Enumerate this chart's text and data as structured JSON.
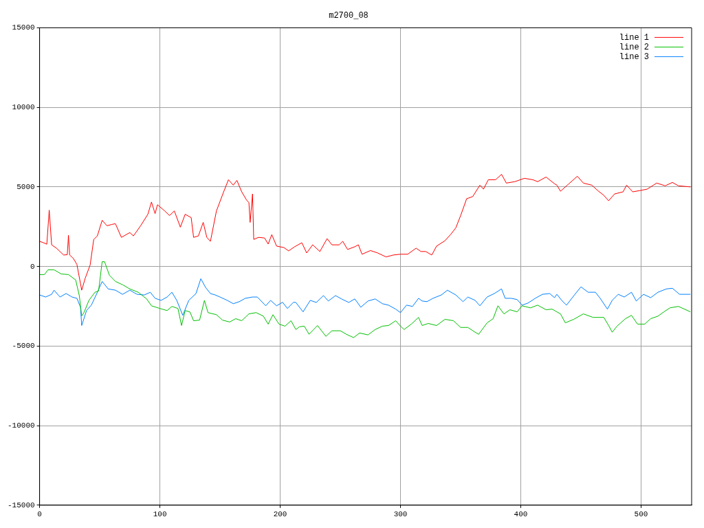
{
  "chart_data": {
    "type": "line",
    "title": "m2700_08",
    "xlim": [
      0,
      542
    ],
    "xticks": [
      0,
      100,
      200,
      300,
      400,
      500
    ],
    "ylim": [
      -15000,
      15000
    ],
    "yticks": [
      -15000,
      -10000,
      -5000,
      0,
      5000,
      10000,
      15000
    ],
    "grid": true,
    "legend": "top right",
    "marker": "none",
    "line_style": "solid",
    "series": [
      {
        "name": "line 1",
        "color": "#ff0000",
        "x": [
          0,
          3,
          6,
          8,
          10,
          14,
          20,
          23,
          24,
          25,
          28,
          31,
          35,
          38,
          42,
          45,
          48,
          52,
          56,
          60,
          63,
          68,
          75,
          78,
          84,
          90,
          93,
          96,
          98,
          104,
          108,
          112,
          117,
          121,
          126,
          128,
          132,
          136,
          139,
          142,
          147,
          153,
          157,
          161,
          164,
          168,
          172,
          174,
          175,
          177,
          178,
          182,
          187,
          190,
          193,
          197,
          203,
          207,
          212,
          218,
          222,
          227,
          233,
          239,
          243,
          249,
          252,
          256,
          262,
          265,
          268,
          275,
          281,
          288,
          294,
          300,
          306,
          313,
          317,
          321,
          326,
          330,
          337,
          342,
          346,
          350,
          355,
          360,
          366,
          369,
          373,
          379,
          384,
          388,
          395,
          403,
          410,
          414,
          421,
          428,
          430,
          433,
          440,
          447,
          452,
          459,
          464,
          469,
          473,
          478,
          485,
          488,
          493,
          499,
          505,
          513,
          520,
          526,
          531,
          541
        ],
        "values": [
          1580,
          1500,
          1400,
          3540,
          1360,
          1150,
          720,
          740,
          1960,
          720,
          510,
          130,
          -1490,
          -720,
          90,
          1700,
          1920,
          2900,
          2560,
          2640,
          2690,
          1830,
          2130,
          1920,
          2560,
          3280,
          4050,
          3320,
          3880,
          3490,
          3200,
          3490,
          2470,
          3280,
          3070,
          1830,
          1920,
          2770,
          1830,
          1580,
          3490,
          4690,
          5450,
          5110,
          5410,
          4690,
          4180,
          4010,
          2770,
          4560,
          1700,
          1830,
          1790,
          1410,
          2000,
          1280,
          1190,
          980,
          1240,
          1490,
          850,
          1360,
          940,
          1750,
          1360,
          1360,
          1580,
          1070,
          1240,
          1360,
          770,
          1000,
          850,
          600,
          720,
          770,
          770,
          1150,
          940,
          940,
          720,
          1280,
          1620,
          2040,
          2430,
          3200,
          4260,
          4390,
          5110,
          4860,
          5450,
          5450,
          5790,
          5240,
          5330,
          5540,
          5450,
          5330,
          5620,
          5200,
          5110,
          4730,
          5200,
          5670,
          5240,
          5110,
          4770,
          4470,
          4130,
          4560,
          4690,
          5110,
          4690,
          4770,
          4860,
          5240,
          5070,
          5280,
          5070,
          5000
        ]
      },
      {
        "name": "line 2",
        "color": "#00c000",
        "x": [
          0,
          4,
          7,
          12,
          18,
          24,
          30,
          33,
          35,
          37,
          41,
          46,
          49,
          52,
          54,
          58,
          63,
          69,
          75,
          82,
          89,
          93,
          100,
          106,
          110,
          115,
          118,
          121,
          125,
          128,
          133,
          137,
          140,
          147,
          152,
          158,
          163,
          168,
          174,
          180,
          186,
          190,
          194,
          199,
          204,
          209,
          213,
          216,
          220,
          224,
          231,
          238,
          243,
          250,
          255,
          261,
          266,
          273,
          279,
          285,
          290,
          296,
          300,
          303,
          309,
          315,
          318,
          323,
          330,
          337,
          344,
          350,
          356,
          362,
          365,
          372,
          377,
          381,
          386,
          391,
          397,
          401,
          408,
          414,
          421,
          426,
          433,
          437,
          444,
          452,
          460,
          469,
          473,
          476,
          480,
          487,
          492,
          497,
          503,
          508,
          514,
          519,
          524,
          531,
          541
        ],
        "values": [
          -510,
          -510,
          -210,
          -210,
          -470,
          -510,
          -850,
          -1830,
          -3110,
          -2880,
          -2130,
          -1620,
          -1540,
          300,
          300,
          -550,
          -940,
          -1150,
          -1410,
          -1620,
          -2040,
          -2470,
          -2640,
          -2770,
          -2510,
          -2640,
          -3710,
          -2770,
          -2860,
          -3410,
          -3370,
          -2130,
          -2900,
          -3030,
          -3370,
          -3490,
          -3280,
          -3410,
          -2980,
          -2900,
          -3120,
          -3620,
          -3030,
          -3620,
          -3750,
          -3410,
          -3960,
          -3790,
          -3750,
          -4260,
          -3710,
          -4390,
          -4040,
          -4040,
          -4260,
          -4470,
          -4180,
          -4300,
          -3960,
          -3750,
          -3710,
          -3410,
          -3750,
          -3960,
          -3620,
          -3200,
          -3710,
          -3580,
          -3710,
          -3320,
          -3410,
          -3830,
          -3830,
          -4130,
          -4260,
          -3540,
          -3280,
          -2470,
          -2980,
          -2720,
          -2850,
          -2470,
          -2600,
          -2430,
          -2720,
          -2680,
          -2980,
          -3540,
          -3320,
          -2980,
          -3200,
          -3200,
          -3710,
          -4130,
          -3750,
          -3280,
          -3070,
          -3620,
          -3620,
          -3280,
          -3120,
          -2850,
          -2600,
          -2510,
          -2850
        ]
      },
      {
        "name": "line 3",
        "color": "#0080ff",
        "x": [
          0,
          5,
          10,
          12,
          17,
          22,
          27,
          31,
          34,
          35,
          39,
          43,
          47,
          52,
          57,
          63,
          69,
          75,
          81,
          87,
          92,
          96,
          101,
          106,
          110,
          114,
          119,
          124,
          130,
          134,
          138,
          142,
          146,
          150,
          156,
          161,
          166,
          171,
          177,
          181,
          188,
          192,
          197,
          202,
          206,
          211,
          213,
          219,
          225,
          230,
          236,
          240,
          246,
          251,
          257,
          262,
          267,
          273,
          279,
          285,
          290,
          296,
          300,
          305,
          310,
          315,
          318,
          322,
          327,
          334,
          339,
          346,
          352,
          356,
          362,
          366,
          372,
          378,
          384,
          387,
          392,
          397,
          401,
          406,
          412,
          418,
          424,
          428,
          430,
          434,
          438,
          445,
          450,
          456,
          462,
          466,
          472,
          476,
          481,
          486,
          492,
          496,
          502,
          508,
          514,
          521,
          526,
          532,
          541
        ],
        "values": [
          -1790,
          -1920,
          -1750,
          -1490,
          -1920,
          -1700,
          -1920,
          -2000,
          -2560,
          -3710,
          -2770,
          -2430,
          -1790,
          -940,
          -1410,
          -1490,
          -1750,
          -1490,
          -1750,
          -1790,
          -1620,
          -2000,
          -2130,
          -1920,
          -1620,
          -2130,
          -3070,
          -2130,
          -1700,
          -770,
          -1320,
          -1700,
          -1790,
          -1920,
          -2130,
          -2340,
          -2210,
          -2000,
          -1920,
          -1920,
          -2470,
          -2130,
          -2470,
          -2250,
          -2640,
          -2250,
          -2260,
          -2850,
          -2130,
          -2260,
          -1830,
          -2170,
          -1830,
          -2040,
          -2260,
          -2040,
          -2560,
          -2170,
          -2040,
          -2340,
          -2430,
          -2680,
          -2900,
          -2430,
          -2510,
          -2000,
          -2170,
          -2210,
          -2000,
          -1790,
          -1490,
          -1790,
          -2210,
          -1920,
          -2130,
          -2470,
          -1920,
          -1700,
          -1410,
          -2000,
          -2000,
          -2080,
          -2430,
          -2300,
          -2000,
          -1750,
          -1700,
          -1960,
          -1750,
          -2130,
          -2430,
          -1750,
          -1280,
          -1620,
          -1620,
          -2000,
          -2680,
          -2130,
          -1750,
          -1920,
          -1620,
          -2170,
          -1750,
          -1960,
          -1620,
          -1410,
          -1370,
          -1750,
          -1750
        ]
      }
    ]
  }
}
